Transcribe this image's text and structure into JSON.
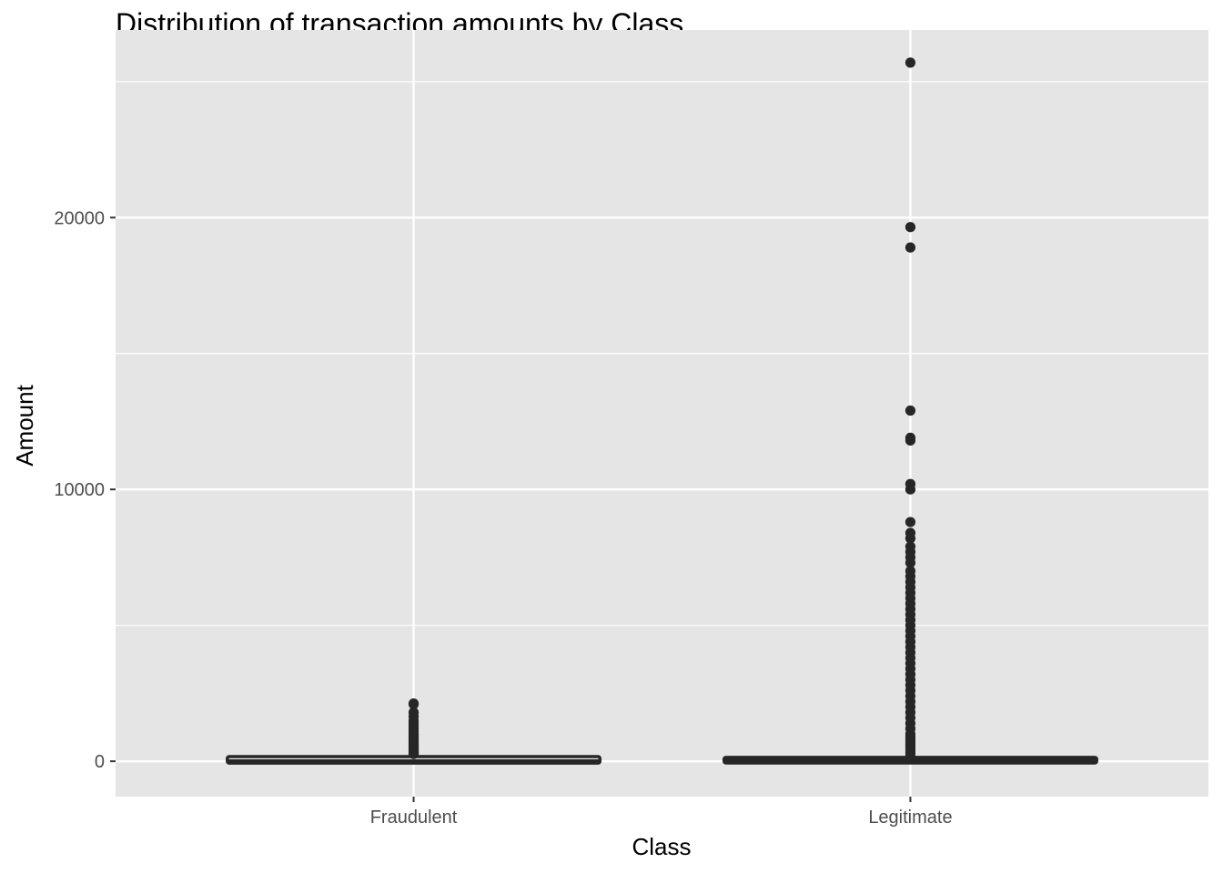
{
  "chart_data": {
    "type": "box",
    "title": "Distribution of transaction amounts by Class",
    "xlabel": "Class",
    "ylabel": "Amount",
    "categories": [
      "Fraudulent",
      "Legitimate"
    ],
    "ylim": [
      -1300,
      26900
    ],
    "y_ticks": [
      0,
      10000,
      20000
    ],
    "y_minor_ticks": [
      5000,
      15000,
      25000
    ],
    "grid": true,
    "legend": "none",
    "colors": {
      "panel": "#e5e5e5",
      "grid": "#ffffff",
      "box": "#262626",
      "axis_text": "#4d4d4d",
      "title_text": "#000000"
    },
    "boxes": [
      {
        "category": "Fraudulent",
        "min": 0,
        "q1": 1,
        "median": 9.25,
        "q3": 105,
        "upper_whisker": 260,
        "outliers": [
          270,
          300,
          330,
          360,
          400,
          440,
          480,
          520,
          560,
          600,
          650,
          700,
          760,
          820,
          880,
          940,
          1000,
          1100,
          1200,
          1300,
          1400,
          1500,
          1650,
          1800,
          2100,
          2125
        ]
      },
      {
        "category": "Legitimate",
        "min": 0,
        "q1": 5.65,
        "median": 22,
        "q3": 77,
        "upper_whisker": 185,
        "outliers": [
          200,
          300,
          400,
          500,
          600,
          700,
          800,
          900,
          1000,
          1200,
          1400,
          1600,
          1800,
          2000,
          2200,
          2400,
          2600,
          2800,
          3000,
          3200,
          3400,
          3600,
          3800,
          4000,
          4200,
          4400,
          4600,
          4800,
          5000,
          5200,
          5400,
          5600,
          5800,
          6000,
          6200,
          6400,
          6600,
          6800,
          7000,
          7300,
          7500,
          7700,
          7900,
          8200,
          8400,
          8800,
          10000,
          10200,
          11800,
          11900,
          12900,
          18900,
          19650,
          25700
        ]
      }
    ]
  }
}
